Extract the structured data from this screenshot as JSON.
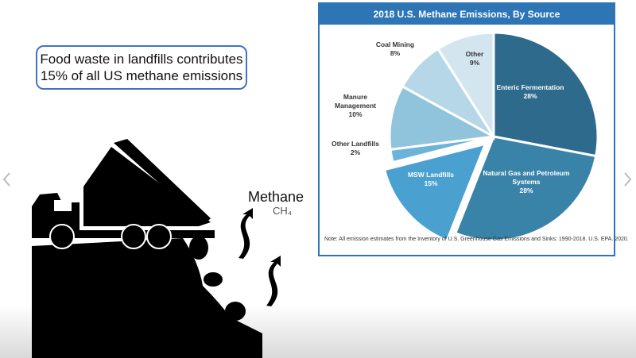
{
  "callout": "Food waste in landfills contributes 15% of all US methane emissions",
  "methane_label": "Methane",
  "formula": "CH₄",
  "chart_data": {
    "type": "pie",
    "title": "2018 U.S. Methane Emissions, By Source",
    "categories": [
      "Enteric Fermentation",
      "Natural Gas and Petroleum Systems",
      "MSW Landfills",
      "Other Landfills",
      "Manure Management",
      "Coal Mining",
      "Other"
    ],
    "values": [
      28,
      28,
      15,
      2,
      10,
      8,
      9
    ],
    "value_labels": [
      "28%",
      "28%",
      "15%",
      "2%",
      "10%",
      "8%",
      "9%"
    ],
    "colors": [
      "#2d6a8c",
      "#3a83a8",
      "#4aa1cf",
      "#6cb4d7",
      "#8fc4dc",
      "#b6d7e7",
      "#d3e6f0"
    ],
    "exploded": [
      false,
      false,
      true,
      false,
      false,
      false,
      false
    ],
    "note": "Note: All emission estimates from the Inventory of U.S. Greenhouse Gas Emissions and Sinks: 1990-2018. U.S. EPA. 2020."
  }
}
